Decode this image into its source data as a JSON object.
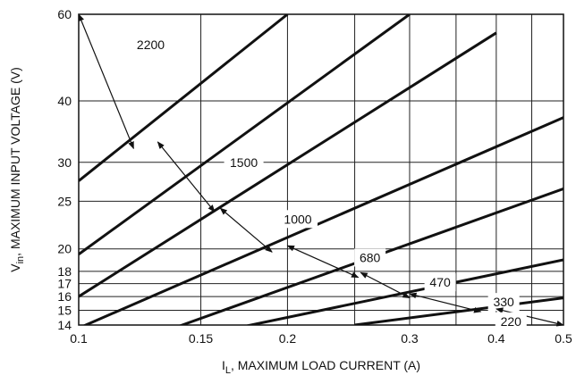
{
  "chart_data": {
    "type": "line",
    "x_scale": "log",
    "y_scale": "log",
    "xlim": [
      0.1,
      0.5
    ],
    "ylim": [
      14,
      60
    ],
    "grid": true,
    "x_ticks": [
      {
        "value": 0.1,
        "label": "0.1"
      },
      {
        "value": 0.15,
        "label": "0.15"
      },
      {
        "value": 0.2,
        "label": "0.2"
      },
      {
        "value": 0.3,
        "label": "0.3"
      },
      {
        "value": 0.4,
        "label": "0.4"
      },
      {
        "value": 0.5,
        "label": "0.5"
      }
    ],
    "x_gridlines": [
      0.1,
      0.15,
      0.2,
      0.25,
      0.3,
      0.35,
      0.4,
      0.45,
      0.5
    ],
    "y_ticks": [
      {
        "value": 14,
        "label": "14"
      },
      {
        "value": 15,
        "label": "15"
      },
      {
        "value": 16,
        "label": "16"
      },
      {
        "value": 17,
        "label": "17"
      },
      {
        "value": 18,
        "label": "18"
      },
      {
        "value": 20,
        "label": "20"
      },
      {
        "value": 25,
        "label": "25"
      },
      {
        "value": 30,
        "label": "30"
      },
      {
        "value": 40,
        "label": "40"
      },
      {
        "value": 60,
        "label": "60"
      }
    ],
    "xlabel": {
      "main": "I",
      "sub": "L",
      "rest": ", MAXIMUM LOAD CURRENT (A)"
    },
    "ylabel": {
      "main": "V",
      "sub": "in",
      "rest": ", MAXIMUM INPUT VOLTAGE (V)"
    },
    "series": [
      {
        "name": "2200",
        "points": [
          [
            0.1,
            27.5
          ],
          [
            0.2,
            60
          ]
        ]
      },
      {
        "name": "1500",
        "points": [
          [
            0.1,
            19.5
          ],
          [
            0.3,
            60
          ]
        ]
      },
      {
        "name": "1000",
        "points": [
          [
            0.1,
            16.0
          ],
          [
            0.4,
            55.0
          ]
        ]
      },
      {
        "name": "680",
        "points": [
          [
            0.1,
            13.8
          ],
          [
            0.5,
            37.0
          ]
        ]
      },
      {
        "name": "470",
        "points": [
          [
            0.14,
            13.95
          ],
          [
            0.5,
            26.5
          ]
        ]
      },
      {
        "name": "330",
        "points": [
          [
            0.175,
            13.95
          ],
          [
            0.5,
            19.0
          ]
        ]
      },
      {
        "name": "220",
        "points": [
          [
            0.25,
            14.0
          ],
          [
            0.5,
            15.9
          ]
        ]
      }
    ],
    "annotations": [
      {
        "label": "2200",
        "arrow": [
          [
            0.1,
            60
          ],
          [
            0.12,
            32
          ]
        ],
        "text_at": [
          0.127,
          52
        ]
      },
      {
        "label": "1500",
        "arrow": [
          [
            0.13,
            33
          ],
          [
            0.157,
            23.8
          ]
        ],
        "text_at": [
          0.173,
          30
        ]
      },
      {
        "label": "1000",
        "arrow": [
          [
            0.16,
            24.2
          ],
          [
            0.19,
            19.7
          ]
        ],
        "text_at": [
          0.207,
          23
        ]
      },
      {
        "label": "680",
        "arrow": [
          [
            0.2,
            20.3
          ],
          [
            0.253,
            17.5
          ]
        ],
        "text_at": [
          0.263,
          19.2
        ]
      },
      {
        "label": "470",
        "arrow": [
          [
            0.255,
            17.9
          ],
          [
            0.3,
            15.9
          ]
        ],
        "text_at": [
          0.332,
          17.1
        ]
      },
      {
        "label": "330",
        "arrow": [
          [
            0.3,
            16.2
          ],
          [
            0.38,
            14.9
          ]
        ],
        "text_at": [
          0.41,
          15.6
        ]
      },
      {
        "label": "220",
        "arrow": [
          [
            0.4,
            15.1
          ],
          [
            0.5,
            14.0
          ]
        ],
        "text_at": [
          0.42,
          14.25
        ]
      }
    ]
  }
}
